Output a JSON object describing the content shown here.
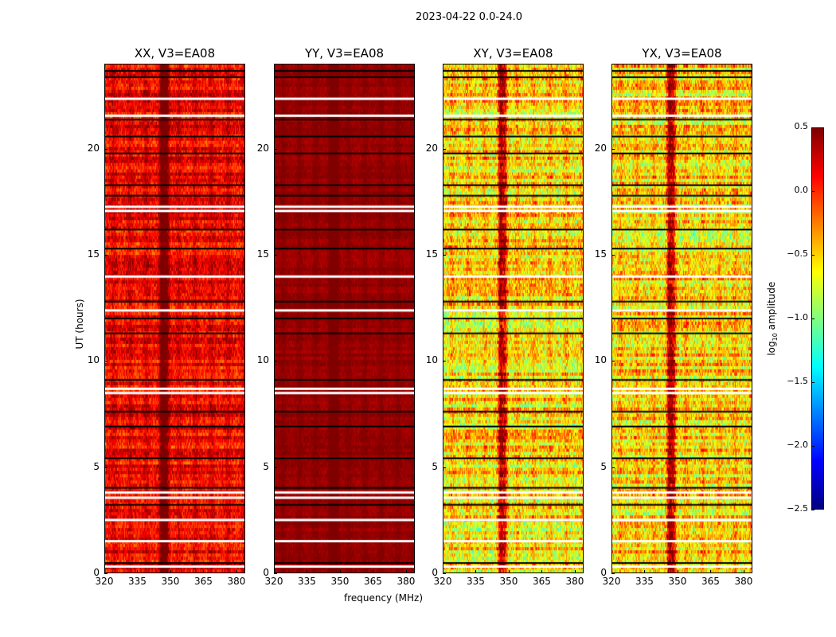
{
  "chart_data": [
    {
      "type": "heatmap",
      "title": "XX, V3=EA08",
      "x_range": [
        320,
        384
      ],
      "y_range": [
        0,
        24
      ],
      "typical_log10_amplitude": 0.1,
      "spread": 0.35
    },
    {
      "type": "heatmap",
      "title": "YY, V3=EA08",
      "x_range": [
        320,
        384
      ],
      "y_range": [
        0,
        24
      ],
      "typical_log10_amplitude": 0.42,
      "spread": 0.1
    },
    {
      "type": "heatmap",
      "title": "XY, V3=EA08",
      "x_range": [
        320,
        384
      ],
      "y_range": [
        0,
        24
      ],
      "typical_log10_amplitude": -0.6,
      "spread": 0.55
    },
    {
      "type": "heatmap",
      "title": "YX, V3=EA08",
      "x_range": [
        320,
        384
      ],
      "y_range": [
        0,
        24
      ],
      "typical_log10_amplitude": -0.6,
      "spread": 0.55
    }
  ],
  "figure": {
    "suptitle": "2023-04-22 0.0-24.0",
    "xlabel": "frequency (MHz)",
    "ylabel": "UT (hours)",
    "xticks": [
      "320",
      "335",
      "350",
      "365",
      "380"
    ],
    "xtick_values": [
      320,
      335,
      350,
      365,
      380
    ],
    "yticks": [
      "0",
      "5",
      "10",
      "15",
      "20"
    ],
    "ytick_values": [
      0,
      5,
      10,
      15,
      20
    ],
    "strong_rfi_channels_mhz": [
      346,
      348
    ],
    "flagged_white_hours": [
      0.3,
      1.5,
      2.5,
      3.55,
      3.8,
      8.5,
      8.7,
      12.4,
      14.0,
      17.1,
      17.3,
      21.6,
      22.4
    ],
    "flagged_black_hours": [
      0.45,
      3.2,
      4.0,
      5.4,
      6.9,
      7.6,
      9.1,
      11.3,
      12.0,
      12.8,
      15.3,
      16.2,
      17.8,
      18.3,
      19.8,
      20.6,
      21.4,
      23.4,
      23.7
    ]
  },
  "colorbar": {
    "label": "log10 amplitude",
    "label_main": "log",
    "label_sub": "10",
    "label_rest": " amplitude",
    "colormap": "jet",
    "range": [
      -2.5,
      0.5
    ],
    "ticks": [
      "0.5",
      "0.0",
      "−0.5",
      "−1.0",
      "−1.5",
      "−2.0",
      "−2.5"
    ],
    "tick_values": [
      0.5,
      0.0,
      -0.5,
      -1.0,
      -1.5,
      -2.0,
      -2.5
    ]
  }
}
